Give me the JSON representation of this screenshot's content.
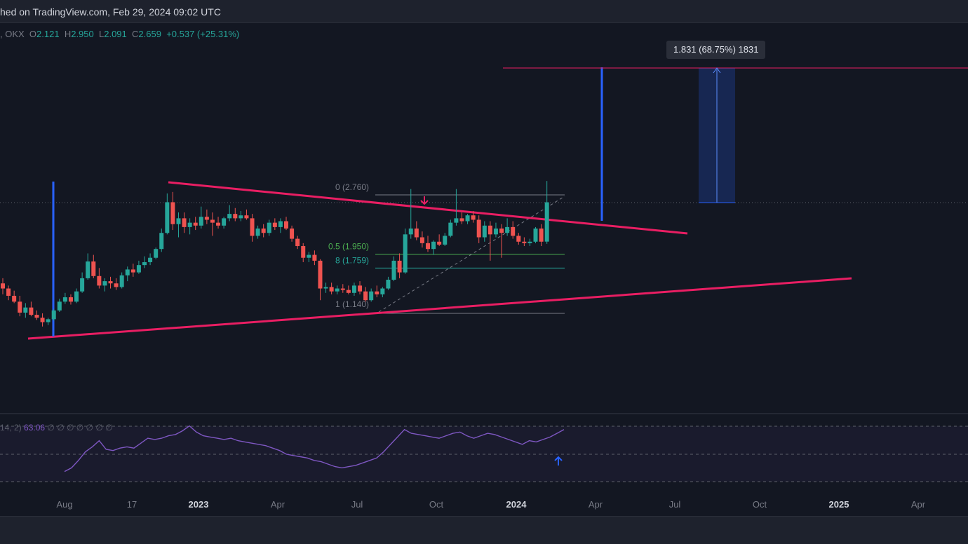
{
  "header": {
    "published": "hed on TradingView.com, Feb 29, 2024 09:02 UTC"
  },
  "legend": {
    "exchange": ", OKX",
    "open_label": "O",
    "open": "2.121",
    "high_label": "H",
    "high": "2.950",
    "low_label": "L",
    "low": "2.091",
    "close_label": "C",
    "close": "2.659",
    "change": "+0.537 (+25.31%)"
  },
  "tooltip": "1.831 (68.75%) 1831",
  "fib_labels": [
    "0 (2.760)",
    "0.5 (1.950)",
    "8 (1.759)",
    "1 (1.140)"
  ],
  "rsi": {
    "params": "14, 2)",
    "value": "63.06",
    "dots": "∅ ∅ ∅ ∅ ∅ ∅ ∅"
  },
  "colors": {
    "background": "#131722",
    "up": "#26a69a",
    "down": "#ef5350",
    "trendline": "#e91e63",
    "fib": "#4caf50",
    "fib_teal": "#26a69a",
    "blue_line": "#2962ff",
    "rsi": "#7e57c2"
  },
  "chart_data": {
    "type": "candlestick",
    "x_ticks": [
      "Aug",
      "17",
      "2023",
      "Apr",
      "Jul",
      "Oct",
      "2024",
      "Apr",
      "Jul",
      "Oct",
      "2025",
      "Apr"
    ],
    "y_scale": {
      "ref_price_1": 2.76,
      "ref_price_2": 1.14
    },
    "fib_levels": [
      {
        "label": "0 (2.760)",
        "price": 2.76
      },
      {
        "label": "0.5 (1.950)",
        "price": 1.95
      },
      {
        "label": "8 (1.759)",
        "price": 1.759
      },
      {
        "label": "1 (1.140)",
        "price": 1.14
      }
    ],
    "ohlc_weekly": [
      [
        1.55,
        1.62,
        1.4,
        1.48
      ],
      [
        1.48,
        1.52,
        1.32,
        1.38
      ],
      [
        1.38,
        1.45,
        1.28,
        1.3
      ],
      [
        1.3,
        1.38,
        1.1,
        1.15
      ],
      [
        1.15,
        1.28,
        1.08,
        1.22
      ],
      [
        1.22,
        1.3,
        1.1,
        1.12
      ],
      [
        1.12,
        1.18,
        1.05,
        1.08
      ],
      [
        1.08,
        1.14,
        0.96,
        1.02
      ],
      [
        1.02,
        1.08,
        0.98,
        1.06
      ],
      [
        1.06,
        1.2,
        1.04,
        1.18
      ],
      [
        1.18,
        1.34,
        1.16,
        1.3
      ],
      [
        1.3,
        1.42,
        1.27,
        1.36
      ],
      [
        1.36,
        1.4,
        1.26,
        1.3
      ],
      [
        1.3,
        1.48,
        1.28,
        1.44
      ],
      [
        1.44,
        1.7,
        1.42,
        1.62
      ],
      [
        1.62,
        1.96,
        1.6,
        1.85
      ],
      [
        1.85,
        1.94,
        1.62,
        1.65
      ],
      [
        1.65,
        1.76,
        1.48,
        1.52
      ],
      [
        1.52,
        1.62,
        1.44,
        1.58
      ],
      [
        1.58,
        1.64,
        1.48,
        1.55
      ],
      [
        1.55,
        1.62,
        1.46,
        1.5
      ],
      [
        1.5,
        1.7,
        1.48,
        1.66
      ],
      [
        1.66,
        1.78,
        1.58,
        1.74
      ],
      [
        1.74,
        1.82,
        1.64,
        1.7
      ],
      [
        1.7,
        1.86,
        1.68,
        1.8
      ],
      [
        1.8,
        1.92,
        1.76,
        1.84
      ],
      [
        1.84,
        1.96,
        1.8,
        1.9
      ],
      [
        1.9,
        2.04,
        1.88,
        2.02
      ],
      [
        2.02,
        2.3,
        1.98,
        2.24
      ],
      [
        2.24,
        2.78,
        2.22,
        2.66
      ],
      [
        2.66,
        2.8,
        2.28,
        2.36
      ],
      [
        2.36,
        2.52,
        2.18,
        2.44
      ],
      [
        2.44,
        2.52,
        2.24,
        2.32
      ],
      [
        2.32,
        2.44,
        2.22,
        2.38
      ],
      [
        2.38,
        2.46,
        2.28,
        2.34
      ],
      [
        2.34,
        2.6,
        2.3,
        2.46
      ],
      [
        2.46,
        2.56,
        2.36,
        2.42
      ],
      [
        2.42,
        2.52,
        2.2,
        2.38
      ],
      [
        2.38,
        2.46,
        2.3,
        2.34
      ],
      [
        2.34,
        2.46,
        2.3,
        2.44
      ],
      [
        2.44,
        2.62,
        2.4,
        2.5
      ],
      [
        2.5,
        2.58,
        2.4,
        2.44
      ],
      [
        2.44,
        2.54,
        2.4,
        2.48
      ],
      [
        2.48,
        2.56,
        2.42,
        2.44
      ],
      [
        2.44,
        2.5,
        2.12,
        2.2
      ],
      [
        2.2,
        2.34,
        2.16,
        2.3
      ],
      [
        2.3,
        2.36,
        2.18,
        2.24
      ],
      [
        2.24,
        2.42,
        2.2,
        2.38
      ],
      [
        2.38,
        2.44,
        2.28,
        2.32
      ],
      [
        2.32,
        2.44,
        2.24,
        2.4
      ],
      [
        2.4,
        2.46,
        2.28,
        2.3
      ],
      [
        2.3,
        2.34,
        2.12,
        2.16
      ],
      [
        2.16,
        2.2,
        2.02,
        2.06
      ],
      [
        2.06,
        2.1,
        1.84,
        1.9
      ],
      [
        1.9,
        1.98,
        1.84,
        1.94
      ],
      [
        1.94,
        2.0,
        1.8,
        1.86
      ],
      [
        1.86,
        1.88,
        1.32,
        1.48
      ],
      [
        1.48,
        1.56,
        1.42,
        1.5
      ],
      [
        1.5,
        1.56,
        1.4,
        1.44
      ],
      [
        1.44,
        1.52,
        1.4,
        1.48
      ],
      [
        1.48,
        1.54,
        1.42,
        1.46
      ],
      [
        1.46,
        1.52,
        1.4,
        1.42
      ],
      [
        1.42,
        1.56,
        1.38,
        1.52
      ],
      [
        1.52,
        1.58,
        1.4,
        1.44
      ],
      [
        1.44,
        1.5,
        1.3,
        1.32
      ],
      [
        1.32,
        1.48,
        1.3,
        1.44
      ],
      [
        1.44,
        1.52,
        1.36,
        1.4
      ],
      [
        1.4,
        1.5,
        1.36,
        1.48
      ],
      [
        1.48,
        1.64,
        1.46,
        1.6
      ],
      [
        1.6,
        1.92,
        1.58,
        1.86
      ],
      [
        1.86,
        1.96,
        1.62,
        1.7
      ],
      [
        1.7,
        2.3,
        1.68,
        2.22
      ],
      [
        2.22,
        2.84,
        2.16,
        2.3
      ],
      [
        2.3,
        2.4,
        2.14,
        2.18
      ],
      [
        2.18,
        2.26,
        2.04,
        2.1
      ],
      [
        2.1,
        2.2,
        1.98,
        2.02
      ],
      [
        2.02,
        2.14,
        1.94,
        2.12
      ],
      [
        2.12,
        2.22,
        2.06,
        2.08
      ],
      [
        2.08,
        2.24,
        2.06,
        2.2
      ],
      [
        2.2,
        2.42,
        2.18,
        2.38
      ],
      [
        2.38,
        2.84,
        2.34,
        2.44
      ],
      [
        2.44,
        2.52,
        2.36,
        2.4
      ],
      [
        2.4,
        2.5,
        2.36,
        2.48
      ],
      [
        2.48,
        2.54,
        2.38,
        2.42
      ],
      [
        2.42,
        2.48,
        2.1,
        2.18
      ],
      [
        2.18,
        2.4,
        2.12,
        2.34
      ],
      [
        2.34,
        2.4,
        1.86,
        2.22
      ],
      [
        2.22,
        2.38,
        2.18,
        2.3
      ],
      [
        2.3,
        2.36,
        1.9,
        2.24
      ],
      [
        2.24,
        2.44,
        2.2,
        2.32
      ],
      [
        2.32,
        2.4,
        2.16,
        2.2
      ],
      [
        2.2,
        2.24,
        2.08,
        2.12
      ],
      [
        2.12,
        2.18,
        2.06,
        2.1
      ],
      [
        2.1,
        2.16,
        2.06,
        2.12
      ],
      [
        2.12,
        2.32,
        2.1,
        2.3
      ],
      [
        2.3,
        2.36,
        2.06,
        2.12
      ],
      [
        2.121,
        2.95,
        2.091,
        2.659
      ]
    ],
    "rsi_values": [
      22,
      28,
      40,
      54,
      62,
      72,
      58,
      56,
      60,
      62,
      60,
      68,
      76,
      74,
      76,
      80,
      82,
      88,
      96,
      86,
      80,
      78,
      76,
      74,
      76,
      72,
      70,
      68,
      66,
      64,
      60,
      56,
      50,
      48,
      46,
      44,
      40,
      38,
      34,
      30,
      28,
      30,
      32,
      36,
      40,
      44,
      54,
      66,
      78,
      90,
      84,
      82,
      80,
      78,
      76,
      80,
      84,
      86,
      80,
      76,
      80,
      84,
      82,
      78,
      74,
      70,
      66,
      72,
      70,
      74,
      78,
      84,
      90
    ]
  }
}
